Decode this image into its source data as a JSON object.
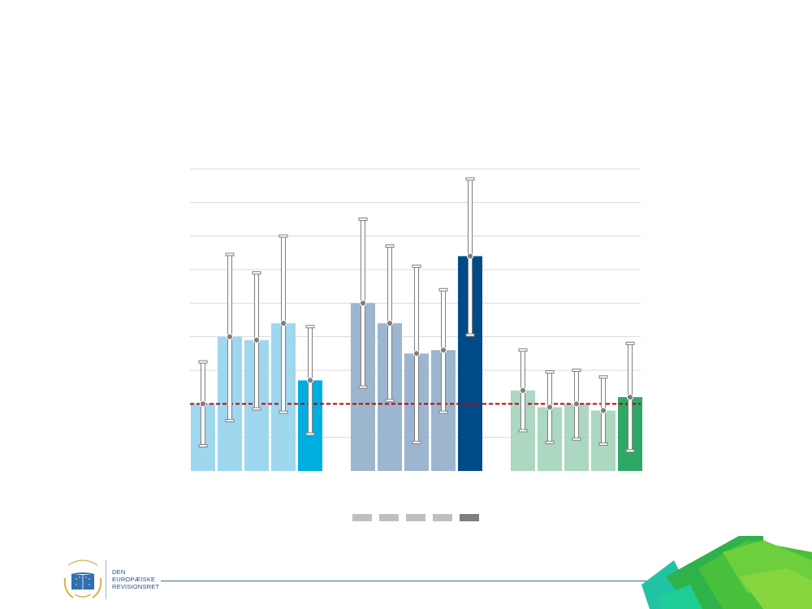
{
  "chart_data": {
    "type": "bar",
    "title": "",
    "xlabel": "",
    "ylabel": "",
    "ylim": [
      0,
      9
    ],
    "gridlines": [
      1,
      2,
      3,
      4,
      5,
      6,
      7,
      8,
      9
    ],
    "reference_line": {
      "value": 2.0,
      "color": "#c00000",
      "style": "dashed"
    },
    "groups": [
      {
        "bars": [
          {
            "value": 2.0,
            "low": 0.75,
            "high": 3.25,
            "color": "#9fd7ef"
          },
          {
            "value": 4.0,
            "low": 1.5,
            "high": 6.45,
            "color": "#9fd7ef"
          },
          {
            "value": 3.9,
            "low": 1.85,
            "high": 5.9,
            "color": "#9fd7ef"
          },
          {
            "value": 4.4,
            "low": 1.75,
            "high": 7.0,
            "color": "#9fd7ef"
          },
          {
            "value": 2.7,
            "low": 1.1,
            "high": 4.3,
            "color": "#00aee2"
          }
        ]
      },
      {
        "bars": [
          {
            "value": 5.0,
            "low": 2.5,
            "high": 7.5,
            "color": "#9cb6cf"
          },
          {
            "value": 4.4,
            "low": 2.1,
            "high": 6.7,
            "color": "#9cb6cf"
          },
          {
            "value": 3.5,
            "low": 0.85,
            "high": 6.1,
            "color": "#9cb6cf"
          },
          {
            "value": 3.6,
            "low": 1.75,
            "high": 5.4,
            "color": "#9cb6cf"
          },
          {
            "value": 6.4,
            "low": 4.05,
            "high": 8.7,
            "color": "#004b87"
          }
        ]
      },
      {
        "bars": [
          {
            "value": 2.4,
            "low": 1.2,
            "high": 3.6,
            "color": "#acd7c0"
          },
          {
            "value": 1.9,
            "low": 0.85,
            "high": 2.95,
            "color": "#acd7c0"
          },
          {
            "value": 2.0,
            "low": 0.95,
            "high": 3.0,
            "color": "#acd7c0"
          },
          {
            "value": 1.8,
            "low": 0.8,
            "high": 2.8,
            "color": "#acd7c0"
          },
          {
            "value": 2.2,
            "low": 0.6,
            "high": 3.8,
            "color": "#2ea866"
          }
        ]
      }
    ],
    "legend": {
      "placement": "bottom",
      "entries": [
        {
          "label": "",
          "color": "#bfbfbf"
        },
        {
          "label": "",
          "color": "#bfbfbf"
        },
        {
          "label": "",
          "color": "#bfbfbf"
        },
        {
          "label": "",
          "color": "#bfbfbf"
        },
        {
          "label": "",
          "color": "#7f7f7f"
        }
      ]
    },
    "colors": {
      "grid": "#d9d9d9",
      "error_bar": "#7f7f7f",
      "point": "#7f7f7f"
    }
  },
  "footer": {
    "org_name_lines": [
      "DEN",
      "EUROPÆISKE",
      "REVISIONSRET"
    ],
    "logo_motto": "CURIA RATIONUM",
    "colors": {
      "line": "#2a6f86",
      "org_text": "#1f4e79",
      "logo_blue": "#2f6fb5",
      "logo_gold": "#d2b24c"
    }
  }
}
